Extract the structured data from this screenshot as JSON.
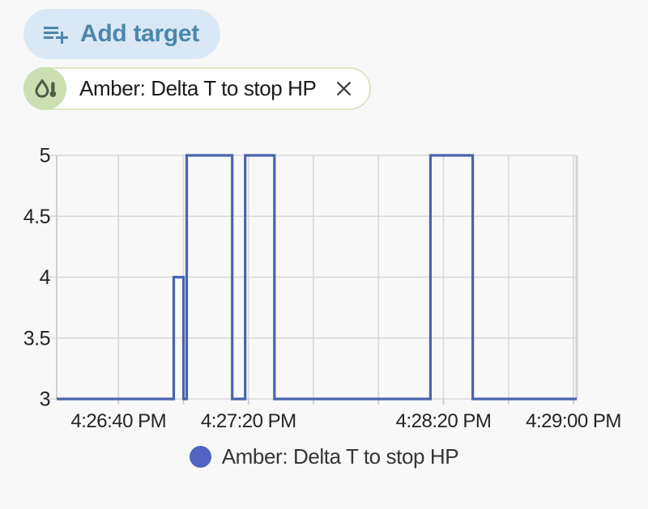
{
  "page": {
    "background": "#f8f8f8"
  },
  "toolbar": {
    "add_target_button": {
      "label": "Add target",
      "icon": "playlist-plus",
      "bg": "#d9e8f4",
      "color": "#4d86ac"
    }
  },
  "target_chip": {
    "label": "Amber: Delta T to stop HP",
    "entity_icon": "humidity-thermometer",
    "close_icon": "close-x",
    "avatar_bg": "#cbdfb3",
    "icon_color": "#4f5a48",
    "border_color": "#dce7c8"
  },
  "chart_data": {
    "type": "line",
    "step": "after",
    "title": "",
    "xlabel": "",
    "ylabel": "",
    "grid": true,
    "legend_position": "bottom",
    "x_axis": {
      "start": "4:26:21 PM",
      "end": "4:29:01 PM",
      "gridline_interval_seconds": 20,
      "gridlines": [
        "4:26:40 PM",
        "4:27:00 PM",
        "4:27:20 PM",
        "4:27:40 PM",
        "4:28:00 PM",
        "4:28:20 PM",
        "4:28:40 PM",
        "4:29:00 PM"
      ],
      "labeled_ticks": [
        "4:26:40 PM",
        "4:27:20 PM",
        "4:28:20 PM",
        "4:29:00 PM"
      ]
    },
    "y_axis": {
      "min": 3,
      "max": 5,
      "ticks": [
        3,
        3.5,
        4,
        4.5,
        5
      ],
      "tick_labels": [
        "3",
        "3.5",
        "4",
        "4.5",
        "5"
      ]
    },
    "series": [
      {
        "name": "Amber: Delta T to stop HP",
        "color": "#4a63ae",
        "points": [
          [
            "4:26:21 PM",
            3
          ],
          [
            "4:26:57 PM",
            4
          ],
          [
            "4:27:00 PM",
            3
          ],
          [
            "4:27:01 PM",
            5
          ],
          [
            "4:27:15 PM",
            3
          ],
          [
            "4:27:19 PM",
            5
          ],
          [
            "4:27:28 PM",
            3
          ],
          [
            "4:28:16 PM",
            5
          ],
          [
            "4:28:29 PM",
            3
          ],
          [
            "4:29:01 PM",
            3
          ]
        ]
      }
    ]
  },
  "legend": {
    "items": [
      {
        "label": "Amber: Delta T to stop HP",
        "color": "#5064c1"
      }
    ]
  }
}
